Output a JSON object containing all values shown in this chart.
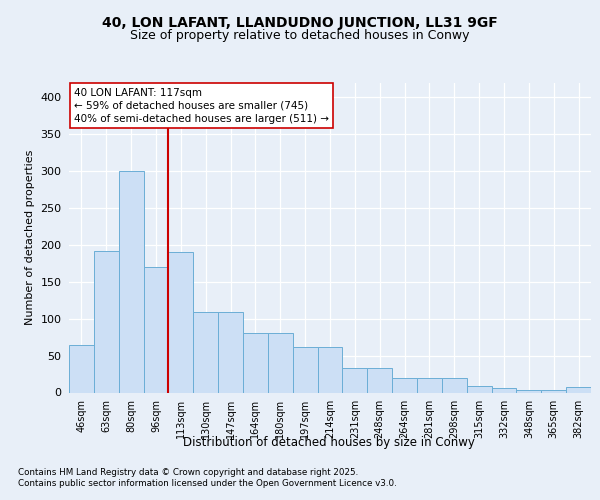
{
  "title1": "40, LON LAFANT, LLANDUDNO JUNCTION, LL31 9GF",
  "title2": "Size of property relative to detached houses in Conwy",
  "xlabel": "Distribution of detached houses by size in Conwy",
  "ylabel": "Number of detached properties",
  "categories": [
    "46sqm",
    "63sqm",
    "80sqm",
    "96sqm",
    "113sqm",
    "130sqm",
    "147sqm",
    "164sqm",
    "180sqm",
    "197sqm",
    "214sqm",
    "231sqm",
    "248sqm",
    "264sqm",
    "281sqm",
    "298sqm",
    "315sqm",
    "332sqm",
    "348sqm",
    "365sqm",
    "382sqm"
  ],
  "bar_values": [
    65,
    192,
    300,
    170,
    190,
    109,
    109,
    80,
    80,
    62,
    62,
    33,
    33,
    20,
    20,
    20,
    9,
    6,
    4,
    4,
    7
  ],
  "bar_color": "#ccdff5",
  "bar_edge_color": "#6baed6",
  "vline_x": 4.5,
  "vline_color": "#cc0000",
  "annotation_text": "40 LON LAFANT: 117sqm\n← 59% of detached houses are smaller (745)\n40% of semi-detached houses are larger (511) →",
  "ylim": [
    0,
    420
  ],
  "yticks": [
    0,
    50,
    100,
    150,
    200,
    250,
    300,
    350,
    400
  ],
  "footer1": "Contains HM Land Registry data © Crown copyright and database right 2025.",
  "footer2": "Contains public sector information licensed under the Open Government Licence v3.0.",
  "bg_color": "#e8eff8",
  "title_fontsize": 10,
  "subtitle_fontsize": 9
}
